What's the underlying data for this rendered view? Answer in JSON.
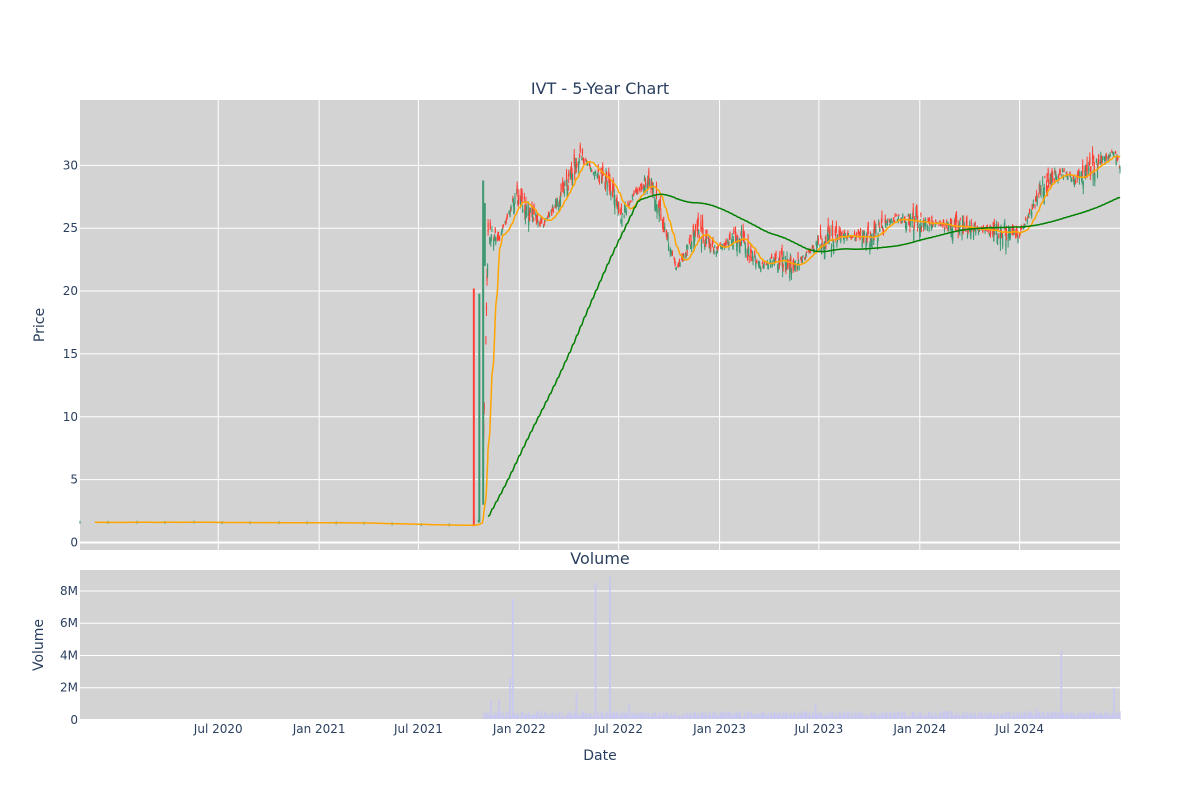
{
  "chart_data": {
    "type": "candlestick",
    "title": "IVT - 5-Year Chart",
    "price_panel": {
      "ylabel": "Price",
      "ylim": [
        -0.6,
        35.2
      ],
      "yticks": [
        0,
        5,
        10,
        15,
        20,
        25,
        30
      ],
      "background": "#d3d3d3",
      "grid": true,
      "up_color": "#3d9970",
      "down_color": "#ff4136",
      "short_ma_color": "#ffa500",
      "long_ma_color": "#008000",
      "anchors": [
        [
          "2019-10-23",
          1.6
        ],
        [
          "2020-06-01",
          1.6
        ],
        [
          "2021-03-15",
          1.55
        ],
        [
          "2021-08-01",
          1.4
        ],
        [
          "2021-10-10",
          1.35
        ],
        [
          "2021-10-25",
          2.0
        ],
        [
          "2021-11-05",
          24.7
        ],
        [
          "2021-11-25",
          24.2
        ],
        [
          "2021-12-25",
          27.4
        ],
        [
          "2022-02-15",
          25.3
        ],
        [
          "2022-03-25",
          28.0
        ],
        [
          "2022-04-22",
          30.8
        ],
        [
          "2022-05-15",
          29.5
        ],
        [
          "2022-06-15",
          28.5
        ],
        [
          "2022-07-05",
          26.0
        ],
        [
          "2022-08-01",
          27.8
        ],
        [
          "2022-08-25",
          28.8
        ],
        [
          "2022-09-20",
          25.5
        ],
        [
          "2022-10-15",
          21.7
        ],
        [
          "2022-11-20",
          25.0
        ],
        [
          "2022-12-25",
          23.3
        ],
        [
          "2023-02-05",
          24.3
        ],
        [
          "2023-03-15",
          22.0
        ],
        [
          "2023-04-20",
          22.5
        ],
        [
          "2023-05-20",
          22.0
        ],
        [
          "2023-07-01",
          24.0
        ],
        [
          "2023-08-15",
          24.4
        ],
        [
          "2023-10-01",
          24.3
        ],
        [
          "2023-11-20",
          25.8
        ],
        [
          "2024-01-20",
          25.4
        ],
        [
          "2024-03-15",
          25.1
        ],
        [
          "2024-05-15",
          24.8
        ],
        [
          "2024-07-01",
          24.5
        ],
        [
          "2024-08-15",
          28.5
        ],
        [
          "2024-09-20",
          29.5
        ],
        [
          "2024-10-10",
          28.8
        ],
        [
          "2024-11-15",
          30.0
        ],
        [
          "2024-12-20",
          31.0
        ],
        [
          "2024-12-31",
          30.0
        ]
      ],
      "spikes": [
        {
          "date": "2021-10-10",
          "open": 20.1,
          "close": 1.5,
          "high": 20.2,
          "low": 1.3
        },
        {
          "date": "2021-10-20",
          "open": 2.0,
          "close": 19.6,
          "high": 19.8,
          "low": 1.6
        },
        {
          "date": "2021-10-27",
          "open": 13.0,
          "close": 17.0,
          "high": 28.8,
          "low": 3.0
        },
        {
          "date": "2021-10-30",
          "open": 22.0,
          "close": 27.0,
          "high": 27.0,
          "low": 22.0
        }
      ]
    },
    "volume_panel": {
      "title": "Volume",
      "ylabel": "Volume",
      "ylim": [
        0,
        9300000
      ],
      "yticks": [
        0,
        2000000,
        4000000,
        6000000,
        8000000
      ],
      "ytick_labels": [
        "0",
        "2M",
        "4M",
        "6M",
        "8M"
      ],
      "bar_color": "#c7c7f0",
      "background": "#d3d3d3",
      "spikes": [
        [
          "2021-12-20",
          7500000
        ],
        [
          "2021-12-15",
          2600000
        ],
        [
          "2022-05-20",
          8500000
        ],
        [
          "2022-06-15",
          8900000
        ],
        [
          "2022-04-15",
          1700000
        ],
        [
          "2024-09-15",
          4300000
        ],
        [
          "2024-12-20",
          2000000
        ],
        [
          "2021-11-10",
          1200000
        ],
        [
          "2021-11-25",
          1300000
        ],
        [
          "2022-07-20",
          1000000
        ],
        [
          "2023-06-25",
          1000000
        ],
        [
          "2024-08-01",
          700000
        ],
        [
          "2024-02-15",
          600000
        ]
      ]
    },
    "xlabel": "Date",
    "xlim": [
      "2019-10-23",
      "2024-12-31"
    ],
    "xticks": [
      "2020-07-01",
      "2021-01-01",
      "2021-07-01",
      "2022-01-01",
      "2022-07-01",
      "2023-01-01",
      "2023-07-01",
      "2024-01-01",
      "2024-07-01"
    ],
    "xtick_labels": [
      "Jul 2020",
      "Jan 2021",
      "Jul 2021",
      "Jan 2022",
      "Jul 2022",
      "Jan 2023",
      "Jul 2023",
      "Jan 2024",
      "Jul 2024"
    ]
  }
}
